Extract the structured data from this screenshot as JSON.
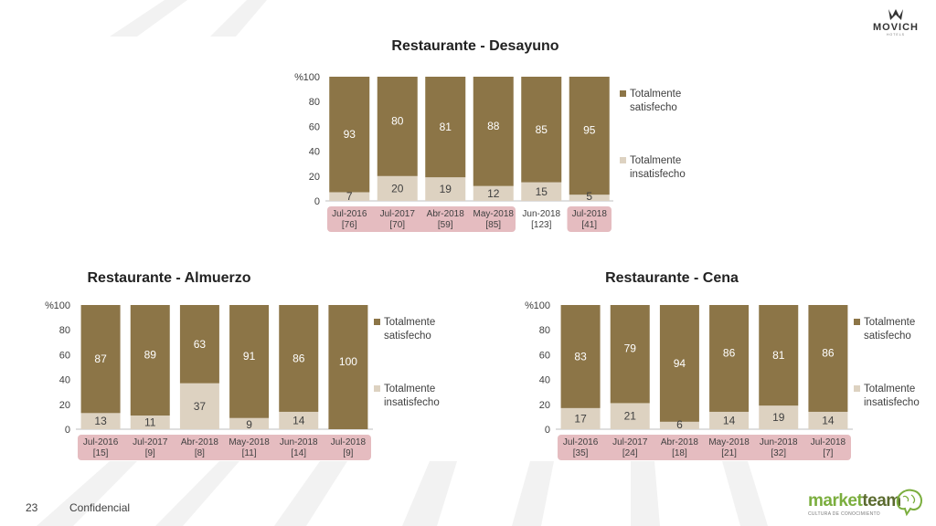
{
  "page": {
    "number": "23",
    "footer_label": "Confidencial"
  },
  "logos": {
    "brand": "MOVICH",
    "brand_sub": "HOTELS",
    "vendor_a": "market",
    "vendor_b": "team",
    "vendor_sub": "CULTURA DE CONOCIMIENTO"
  },
  "colors": {
    "satisfied": "#8c7547",
    "dissatisfied": "#ddd2c1",
    "label_band": "#e5bcc0",
    "vendor_green": "#7bae3e",
    "vendor_dark": "#5b6b2f"
  },
  "chart_data": [
    {
      "type": "bar",
      "stacked": true,
      "title": "Restaurante - Desayuno",
      "ylabel": "%",
      "ylim": [
        0,
        100
      ],
      "yticks": [
        "0",
        "20",
        "40",
        "60",
        "80",
        "100"
      ],
      "categories": [
        "Jul-2016",
        "Jul-2017",
        "Abr-2018",
        "May-2018",
        "Jun-2018",
        "Jul-2018"
      ],
      "sample_sizes": [
        "[76]",
        "[70]",
        "[59]",
        "[85]",
        "[123]",
        "[41]"
      ],
      "highlighted": [
        true,
        true,
        true,
        true,
        false,
        true
      ],
      "series": [
        {
          "name": "Totalmente insatisfecho",
          "values": [
            7,
            20,
            19,
            12,
            15,
            5
          ]
        },
        {
          "name": "Totalmente satisfecho",
          "values": [
            93,
            80,
            81,
            88,
            85,
            95
          ]
        }
      ],
      "legend": "right"
    },
    {
      "type": "bar",
      "stacked": true,
      "title": "Restaurante - Almuerzo",
      "ylabel": "%",
      "ylim": [
        0,
        100
      ],
      "yticks": [
        "0",
        "20",
        "40",
        "60",
        "80",
        "100"
      ],
      "categories": [
        "Jul-2016",
        "Jul-2017",
        "Abr-2018",
        "May-2018",
        "Jun-2018",
        "Jul-2018"
      ],
      "sample_sizes": [
        "[15]",
        "[9]",
        "[8]",
        "[11]",
        "[14]",
        "[9]"
      ],
      "highlighted": [
        true,
        true,
        true,
        true,
        true,
        true
      ],
      "series": [
        {
          "name": "Totalmente insatisfecho",
          "values": [
            13,
            11,
            37,
            9,
            14,
            0
          ]
        },
        {
          "name": "Totalmente satisfecho",
          "values": [
            87,
            89,
            63,
            91,
            86,
            100
          ]
        }
      ],
      "legend": "right"
    },
    {
      "type": "bar",
      "stacked": true,
      "title": "Restaurante - Cena",
      "ylabel": "%",
      "ylim": [
        0,
        100
      ],
      "yticks": [
        "0",
        "20",
        "40",
        "60",
        "80",
        "100"
      ],
      "categories": [
        "Jul-2016",
        "Jul-2017",
        "Abr-2018",
        "May-2018",
        "Jun-2018",
        "Jul-2018"
      ],
      "sample_sizes": [
        "[35]",
        "[24]",
        "[18]",
        "[21]",
        "[32]",
        "[7]"
      ],
      "highlighted": [
        true,
        true,
        true,
        true,
        true,
        true
      ],
      "series": [
        {
          "name": "Totalmente insatisfecho",
          "values": [
            17,
            21,
            6,
            14,
            19,
            14
          ]
        },
        {
          "name": "Totalmente satisfecho",
          "values": [
            83,
            79,
            94,
            86,
            81,
            86
          ]
        }
      ],
      "legend": "right"
    }
  ]
}
